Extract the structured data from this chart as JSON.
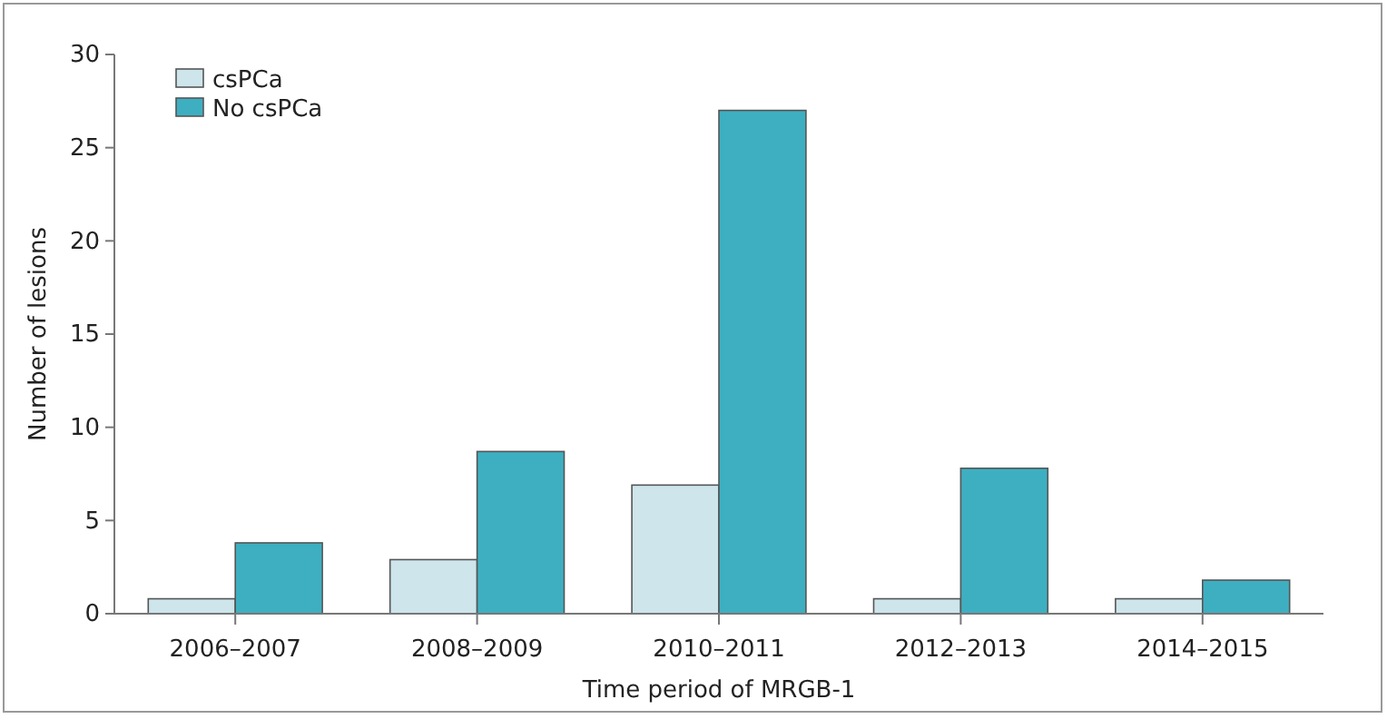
{
  "chart_data": {
    "type": "bar",
    "xlabel": "Time period of MRGB-1",
    "ylabel": "Number of lesions",
    "categories": [
      "2006–2007",
      "2008–2009",
      "2010–2011",
      "2012–2013",
      "2014–2015"
    ],
    "series": [
      {
        "name": "csPCa",
        "color": "#cde5eb",
        "values": [
          0.8,
          2.9,
          6.9,
          0.8,
          0.8
        ]
      },
      {
        "name": "No csPCa",
        "color": "#3eafc1",
        "values": [
          3.8,
          8.7,
          27,
          7.8,
          1.8
        ]
      }
    ],
    "ylim": [
      0,
      30
    ],
    "yticks": [
      0,
      5,
      10,
      15,
      20,
      25,
      30
    ],
    "grid": false,
    "legend": "top left"
  }
}
